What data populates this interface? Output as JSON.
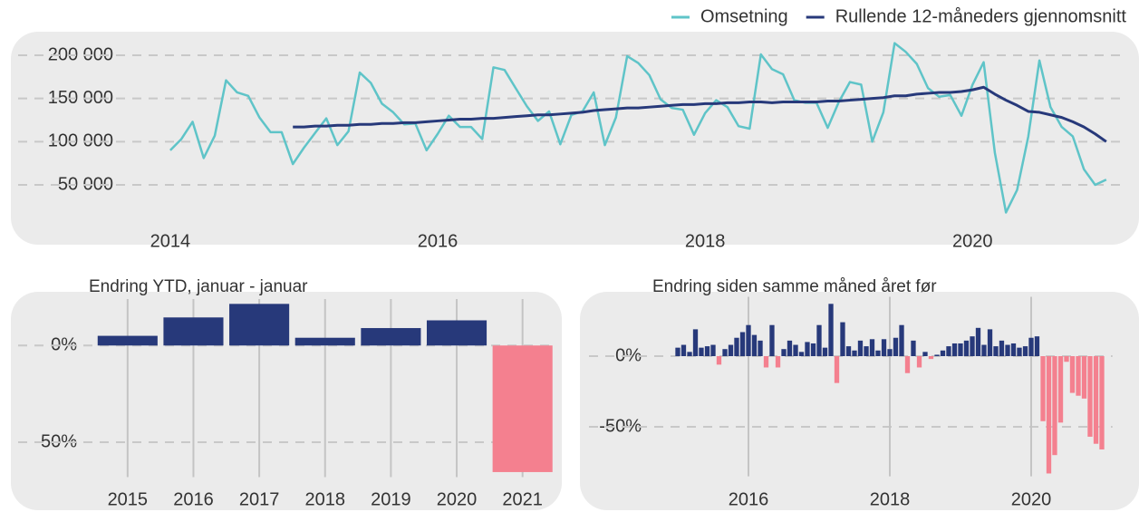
{
  "chart_data": [
    {
      "type": "line",
      "legend": "top-right",
      "x": [
        2014,
        2014.083,
        2014.167,
        2014.25,
        2014.333,
        2014.417,
        2014.5,
        2014.583,
        2014.667,
        2014.75,
        2014.833,
        2014.917,
        2015,
        2015.083,
        2015.167,
        2015.25,
        2015.333,
        2015.417,
        2015.5,
        2015.583,
        2015.667,
        2015.75,
        2015.833,
        2015.917,
        2016,
        2016.083,
        2016.167,
        2016.25,
        2016.333,
        2016.417,
        2016.5,
        2016.583,
        2016.667,
        2016.75,
        2016.833,
        2016.917,
        2017,
        2017.083,
        2017.167,
        2017.25,
        2017.333,
        2017.417,
        2017.5,
        2017.583,
        2017.667,
        2017.75,
        2017.833,
        2017.917,
        2018,
        2018.083,
        2018.167,
        2018.25,
        2018.333,
        2018.417,
        2018.5,
        2018.583,
        2018.667,
        2018.75,
        2018.833,
        2018.917,
        2019,
        2019.083,
        2019.167,
        2019.25,
        2019.333,
        2019.417,
        2019.5,
        2019.583,
        2019.667,
        2019.75,
        2019.833,
        2019.917,
        2020,
        2020.083,
        2020.167,
        2020.25,
        2020.333,
        2020.417,
        2020.5,
        2020.583,
        2020.667,
        2020.75,
        2020.833,
        2020.917,
        2021
      ],
      "series": [
        {
          "name": "Omsetning",
          "color": "#5fc4c8",
          "values": [
            90000,
            103000,
            123000,
            81000,
            107000,
            171000,
            157000,
            153000,
            128000,
            111000,
            111000,
            74000,
            93000,
            110000,
            127000,
            96000,
            112000,
            180000,
            168000,
            144000,
            134000,
            120000,
            121000,
            90000,
            109000,
            130000,
            117000,
            117000,
            103000,
            186000,
            183000,
            162000,
            141000,
            124000,
            135000,
            97000,
            131000,
            135000,
            157000,
            96000,
            128000,
            199000,
            191000,
            177000,
            149000,
            139000,
            137000,
            108000,
            133000,
            148000,
            140000,
            118000,
            115000,
            201000,
            184000,
            178000,
            148000,
            145000,
            145000,
            116000,
            146000,
            169000,
            166000,
            100000,
            134000,
            214000,
            204000,
            190000,
            162000,
            152000,
            154000,
            130000,
            166000,
            192000,
            87000,
            18000,
            44000,
            106000,
            194000,
            140000,
            117000,
            106000,
            68000,
            50000,
            56000
          ]
        },
        {
          "name": "Rullende 12-måneders gjennomsnitt",
          "color": "#27397a",
          "values": [
            null,
            null,
            null,
            null,
            null,
            null,
            null,
            null,
            null,
            null,
            null,
            117000,
            117000,
            118000,
            118000,
            119000,
            119000,
            120000,
            120000,
            121000,
            121000,
            122000,
            122000,
            123000,
            124000,
            125000,
            126000,
            126000,
            127000,
            127000,
            128000,
            129000,
            130000,
            131000,
            131000,
            132000,
            133000,
            134000,
            136000,
            137000,
            138000,
            139000,
            139000,
            140000,
            141000,
            142000,
            143000,
            143000,
            144000,
            144000,
            145000,
            145000,
            146000,
            146000,
            145000,
            146000,
            146000,
            146000,
            146000,
            147000,
            147000,
            148000,
            149000,
            150000,
            151000,
            153000,
            153000,
            155000,
            156000,
            157000,
            157000,
            158000,
            160000,
            163000,
            155000,
            148000,
            142000,
            135000,
            134000,
            131000,
            128000,
            123000,
            117000,
            109000,
            100000
          ]
        }
      ],
      "xlim": [
        2013.75,
        2021.15
      ],
      "xticks": [
        2014,
        2016,
        2018,
        2020
      ],
      "ylim": [
        10000,
        230000
      ],
      "yticks": [
        {
          "value": 50000,
          "label": "50 000"
        },
        {
          "value": 100000,
          "label": "100 000"
        },
        {
          "value": 150000,
          "label": "150 000"
        },
        {
          "value": 200000,
          "label": "200 000"
        }
      ],
      "grid": true
    },
    {
      "type": "bar",
      "title": "Endring YTD, januar -  januar",
      "categories": [
        "2015",
        "2016",
        "2017",
        "2018",
        "2019",
        "2020",
        "2021"
      ],
      "values": [
        5,
        14.5,
        21.5,
        4,
        9,
        13,
        -65.4
      ],
      "color": "#27397a",
      "negative_color": "#f4808f",
      "ylim": [
        -68,
        24
      ],
      "yticks": [
        {
          "value": -50,
          "label": "-50%"
        },
        {
          "value": 0,
          "label": "0%"
        }
      ],
      "grid": true,
      "xgrid": true
    },
    {
      "type": "bar",
      "title": "Endring siden samme måned året før",
      "x": [
        2015,
        2015.083,
        2015.167,
        2015.25,
        2015.333,
        2015.417,
        2015.5,
        2015.583,
        2015.667,
        2015.75,
        2015.833,
        2015.917,
        2016,
        2016.083,
        2016.167,
        2016.25,
        2016.333,
        2016.417,
        2016.5,
        2016.583,
        2016.667,
        2016.75,
        2016.833,
        2016.917,
        2017,
        2017.083,
        2017.167,
        2017.25,
        2017.333,
        2017.417,
        2017.5,
        2017.583,
        2017.667,
        2017.75,
        2017.833,
        2017.917,
        2018,
        2018.083,
        2018.167,
        2018.25,
        2018.333,
        2018.417,
        2018.5,
        2018.583,
        2018.667,
        2018.75,
        2018.833,
        2018.917,
        2019,
        2019.083,
        2019.167,
        2019.25,
        2019.333,
        2019.417,
        2019.5,
        2019.583,
        2019.667,
        2019.75,
        2019.833,
        2019.917,
        2020,
        2020.083,
        2020.167,
        2020.25,
        2020.333,
        2020.417,
        2020.5,
        2020.583,
        2020.667,
        2020.75,
        2020.833,
        2020.917,
        2021
      ],
      "values": [
        6,
        8,
        3,
        19,
        6,
        7,
        8,
        -6,
        5,
        8,
        13,
        17,
        22,
        15,
        11,
        -8,
        22,
        -8,
        5,
        11,
        8,
        3,
        10,
        9,
        22,
        6,
        37,
        -19,
        24,
        7,
        4,
        11,
        7,
        12,
        4,
        12,
        5,
        13,
        22,
        -12,
        11,
        -8,
        3,
        -2,
        1,
        4,
        7,
        9,
        9,
        11,
        14,
        20,
        8,
        19,
        7,
        11,
        8,
        9,
        6,
        7,
        13,
        14,
        -46,
        -83,
        -70,
        -47,
        -4,
        -26,
        -28,
        -30,
        -57,
        -62,
        -66
      ],
      "color": "#27397a",
      "negative_color": "#f4808f",
      "xlim": [
        2014.75,
        2021.15
      ],
      "xticks": [
        2016,
        2018,
        2020
      ],
      "ylim": [
        -85,
        42
      ],
      "yticks": [
        {
          "value": -50,
          "label": "-50%"
        },
        {
          "value": 0,
          "label": "0%"
        }
      ],
      "grid": true,
      "xgrid": true
    }
  ]
}
